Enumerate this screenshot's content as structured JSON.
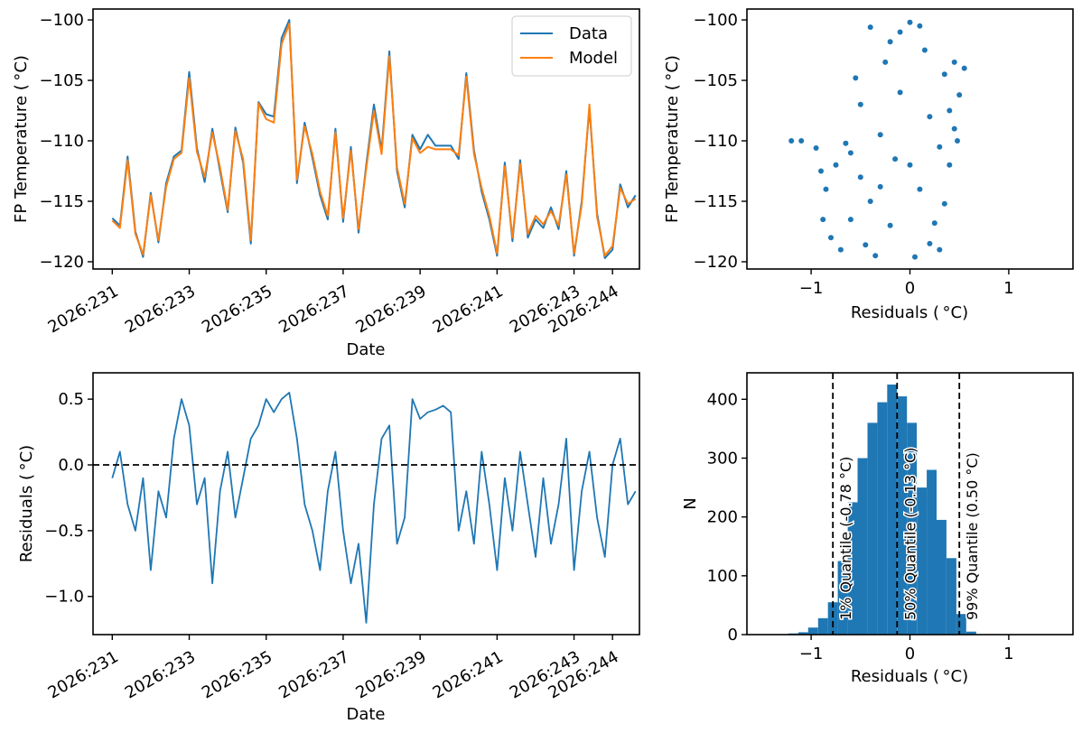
{
  "colors": {
    "data": "#1f77b4",
    "model": "#ff7f0e",
    "bars": "#1f77b4",
    "axis": "#000000"
  },
  "date_ticks": [
    "2026:231",
    "2026:233",
    "2026:235",
    "2026:237",
    "2026:239",
    "2026:241",
    "2026:243",
    "2026:244"
  ],
  "chart_data": [
    {
      "id": "temperature-timeseries",
      "type": "line",
      "xlabel": "Date",
      "ylabel": "FP Temperature ($^\\circ$C)",
      "ylabel_display": "FP Temperature ( °C)",
      "x_unit": "day of year 2026",
      "xlim": [
        230.5,
        244.7
      ],
      "ylim": [
        -120.6,
        -99.1
      ],
      "yticks": [
        -120,
        -115,
        -110,
        -105,
        -100
      ],
      "ytick_labels": [
        "−120",
        "−115",
        "−110",
        "−105",
        "−100"
      ],
      "legend": {
        "position": "top-right",
        "entries": [
          "Data",
          "Model"
        ]
      },
      "x": [
        231.0,
        231.2,
        231.4,
        231.6,
        231.8,
        232.0,
        232.2,
        232.4,
        232.6,
        232.8,
        233.0,
        233.2,
        233.4,
        233.6,
        233.8,
        234.0,
        234.2,
        234.4,
        234.6,
        234.8,
        235.0,
        235.2,
        235.4,
        235.6,
        235.8,
        236.0,
        236.2,
        236.4,
        236.6,
        236.8,
        237.0,
        237.2,
        237.4,
        237.6,
        237.8,
        238.0,
        238.2,
        238.4,
        238.6,
        238.8,
        239.0,
        239.2,
        239.4,
        239.6,
        239.8,
        240.0,
        240.2,
        240.4,
        240.6,
        240.8,
        241.0,
        241.2,
        241.4,
        241.6,
        241.8,
        242.0,
        242.2,
        242.4,
        242.6,
        242.8,
        243.0,
        243.2,
        243.4,
        243.6,
        243.8,
        244.0,
        244.2,
        244.4,
        244.6
      ],
      "series": [
        {
          "name": "Data",
          "values": [
            -116.4,
            -117.0,
            -111.3,
            -117.5,
            -119.6,
            -114.3,
            -118.4,
            -113.5,
            -111.3,
            -110.8,
            -104.3,
            -110.6,
            -113.4,
            -109.0,
            -112.5,
            -115.9,
            -108.9,
            -111.8,
            -118.5,
            -106.8,
            -107.8,
            -108.0,
            -101.5,
            -100.0,
            -113.5,
            -108.5,
            -111.4,
            -114.5,
            -116.5,
            -109.0,
            -116.7,
            -110.5,
            -117.6,
            -112.0,
            -107.0,
            -110.8,
            -102.6,
            -112.5,
            -115.5,
            -109.5,
            -110.7,
            -109.5,
            -110.4,
            -110.4,
            -110.4,
            -111.5,
            -104.4,
            -110.8,
            -114.2,
            -116.5,
            -119.5,
            -111.8,
            -118.3,
            -111.6,
            -118.0,
            -116.5,
            -117.2,
            -115.5,
            -117.3,
            -112.5,
            -119.5,
            -115.0,
            -107.3,
            -116.0,
            -119.7,
            -119.0,
            -113.6,
            -115.5,
            -114.5
          ]
        },
        {
          "name": "Model",
          "values": [
            -116.6,
            -117.2,
            -111.6,
            -117.7,
            -119.4,
            -114.5,
            -118.2,
            -113.8,
            -111.5,
            -111.0,
            -104.8,
            -110.9,
            -113.0,
            -109.3,
            -112.2,
            -115.7,
            -109.2,
            -111.5,
            -118.2,
            -106.9,
            -108.2,
            -108.5,
            -102.0,
            -100.3,
            -113.2,
            -108.8,
            -111.1,
            -114.2,
            -116.2,
            -109.3,
            -116.4,
            -110.8,
            -117.3,
            -112.3,
            -107.5,
            -111.1,
            -103.0,
            -112.2,
            -115.2,
            -109.8,
            -111.0,
            -110.5,
            -110.7,
            -110.7,
            -110.7,
            -111.2,
            -104.7,
            -111.1,
            -113.9,
            -116.2,
            -119.3,
            -112.1,
            -118.0,
            -111.9,
            -117.7,
            -116.2,
            -116.9,
            -115.8,
            -117.0,
            -112.8,
            -119.3,
            -115.3,
            -107.0,
            -116.3,
            -119.5,
            -118.7,
            -113.9,
            -115.2,
            -114.8
          ]
        }
      ]
    },
    {
      "id": "temperature-vs-residual-scatter",
      "type": "scatter",
      "xlabel": "Residuals ($^\\circ$C)",
      "xlabel_display": "Residuals ( °C)",
      "ylabel": "FP Temperature ($^\\circ$C)",
      "ylabel_display": "FP Temperature ( °C)",
      "xlim": [
        -1.65,
        1.65
      ],
      "ylim": [
        -120.6,
        -99.1
      ],
      "xticks": [
        -1,
        0,
        1
      ],
      "xtick_labels": [
        "−1",
        "0",
        "1"
      ],
      "yticks": [
        -120,
        -115,
        -110,
        -105,
        -100
      ],
      "ytick_labels": [
        "−120",
        "−115",
        "−110",
        "−105",
        "−100"
      ],
      "points": [
        [
          -1.2,
          -110.0
        ],
        [
          -1.1,
          -110.0
        ],
        [
          -0.95,
          -110.6
        ],
        [
          -0.9,
          -112.5
        ],
        [
          -0.85,
          -114.0
        ],
        [
          -0.88,
          -116.5
        ],
        [
          -0.8,
          -118.0
        ],
        [
          -0.7,
          -119.0
        ],
        [
          -0.6,
          -111.0
        ],
        [
          -0.5,
          -113.0
        ],
        [
          -0.4,
          -115.0
        ],
        [
          -0.3,
          -109.5
        ],
        [
          -0.2,
          -117.0
        ],
        [
          -0.1,
          -106.0
        ],
        [
          0.0,
          -112.0
        ],
        [
          0.1,
          -114.0
        ],
        [
          0.2,
          -108.0
        ],
        [
          0.3,
          -110.5
        ],
        [
          0.35,
          -104.5
        ],
        [
          0.4,
          -107.5
        ],
        [
          0.45,
          -103.5
        ],
        [
          0.55,
          -104.0
        ],
        [
          0.5,
          -106.2
        ],
        [
          0.45,
          -109.0
        ],
        [
          0.4,
          -112.0
        ],
        [
          0.35,
          -115.2
        ],
        [
          0.2,
          -118.5
        ],
        [
          0.05,
          -119.6
        ],
        [
          -0.35,
          -119.5
        ],
        [
          -0.1,
          -101.0
        ],
        [
          0.0,
          -100.2
        ],
        [
          0.1,
          -100.5
        ],
        [
          -0.2,
          -101.8
        ],
        [
          -0.4,
          -100.6
        ],
        [
          0.15,
          -102.5
        ],
        [
          -0.25,
          -103.5
        ],
        [
          -0.5,
          -107.0
        ],
        [
          -0.55,
          -104.8
        ],
        [
          -0.15,
          -111.5
        ],
        [
          -0.6,
          -116.5
        ],
        [
          -0.3,
          -113.8
        ],
        [
          0.25,
          -116.8
        ],
        [
          -0.45,
          -118.6
        ],
        [
          0.3,
          -119.0
        ],
        [
          0.48,
          -110.0
        ],
        [
          -0.75,
          -112.0
        ],
        [
          -0.65,
          -110.2
        ]
      ]
    },
    {
      "id": "residuals-timeseries",
      "type": "line",
      "xlabel": "Date",
      "ylabel": "Residuals ($^\\circ$C)",
      "ylabel_display": "Residuals ( °C)",
      "x_unit": "day of year 2026",
      "xlim": [
        230.5,
        244.7
      ],
      "ylim": [
        -1.29,
        0.7
      ],
      "yticks": [
        -1.0,
        -0.5,
        0.0,
        0.5
      ],
      "ytick_labels": [
        "−1.0",
        "−0.5",
        "0.0",
        "0.5"
      ],
      "reference_line": {
        "y": 0.0,
        "style": "dashed",
        "color": "#000000"
      },
      "x": [
        231.0,
        231.2,
        231.4,
        231.6,
        231.8,
        232.0,
        232.2,
        232.4,
        232.6,
        232.8,
        233.0,
        233.2,
        233.4,
        233.6,
        233.8,
        234.0,
        234.2,
        234.4,
        234.6,
        234.8,
        235.0,
        235.2,
        235.4,
        235.6,
        235.8,
        236.0,
        236.2,
        236.4,
        236.6,
        236.8,
        237.0,
        237.2,
        237.4,
        237.6,
        237.8,
        238.0,
        238.2,
        238.4,
        238.6,
        238.8,
        239.0,
        239.2,
        239.4,
        239.6,
        239.8,
        240.0,
        240.2,
        240.4,
        240.6,
        240.8,
        241.0,
        241.2,
        241.4,
        241.6,
        241.8,
        242.0,
        242.2,
        242.4,
        242.6,
        242.8,
        243.0,
        243.2,
        243.4,
        243.6,
        243.8,
        244.0,
        244.2,
        244.4,
        244.6
      ],
      "values": [
        -0.1,
        0.1,
        -0.3,
        -0.5,
        -0.1,
        -0.8,
        -0.2,
        -0.4,
        0.2,
        0.5,
        0.3,
        -0.3,
        -0.1,
        -0.9,
        -0.2,
        0.1,
        -0.4,
        -0.1,
        0.2,
        0.3,
        0.5,
        0.4,
        0.5,
        0.55,
        0.2,
        -0.3,
        -0.5,
        -0.8,
        -0.2,
        0.1,
        -0.5,
        -0.9,
        -0.6,
        -1.2,
        -0.3,
        0.2,
        0.3,
        -0.6,
        -0.4,
        0.5,
        0.35,
        0.4,
        0.42,
        0.45,
        0.4,
        -0.5,
        -0.2,
        -0.6,
        0.1,
        -0.3,
        -0.8,
        -0.1,
        -0.5,
        0.1,
        -0.3,
        -0.7,
        -0.1,
        -0.6,
        -0.3,
        0.2,
        -0.8,
        -0.2,
        0.1,
        -0.4,
        -0.7,
        0.0,
        0.2,
        -0.3,
        -0.2
      ]
    },
    {
      "id": "residuals-histogram",
      "type": "bar",
      "xlabel": "Residuals ($^\\circ$C)",
      "xlabel_display": "Residuals ( °C)",
      "ylabel": "N",
      "xlim": [
        -1.65,
        1.65
      ],
      "ylim": [
        0,
        445
      ],
      "xticks": [
        -1,
        0,
        1
      ],
      "xtick_labels": [
        "−1",
        "0",
        "1"
      ],
      "yticks": [
        0,
        100,
        200,
        300,
        400
      ],
      "ytick_labels": [
        "0",
        "100",
        "200",
        "300",
        "400"
      ],
      "bin_width": 0.1,
      "bin_starts": [
        -1.23,
        -1.13,
        -1.03,
        -0.93,
        -0.83,
        -0.73,
        -0.63,
        -0.53,
        -0.43,
        -0.33,
        -0.23,
        -0.13,
        -0.03,
        0.07,
        0.17,
        0.27,
        0.37,
        0.47,
        0.57
      ],
      "values": [
        2,
        4,
        12,
        28,
        55,
        125,
        225,
        300,
        360,
        395,
        425,
        405,
        360,
        250,
        280,
        195,
        130,
        35,
        5
      ],
      "quantiles": [
        {
          "x": -0.78,
          "label": "1% Quantile (-0.78 $^\\circ$C)",
          "display": "1% Quantile (-0.78 °C)"
        },
        {
          "x": -0.13,
          "label": "50% Quantile (-0.13 $^\\circ$C)",
          "display": "50% Quantile (-0.13 °C)"
        },
        {
          "x": 0.5,
          "label": "99% Quantile (0.50 $^\\circ$C)",
          "display": "99% Quantile (0.50 °C)"
        }
      ]
    }
  ]
}
